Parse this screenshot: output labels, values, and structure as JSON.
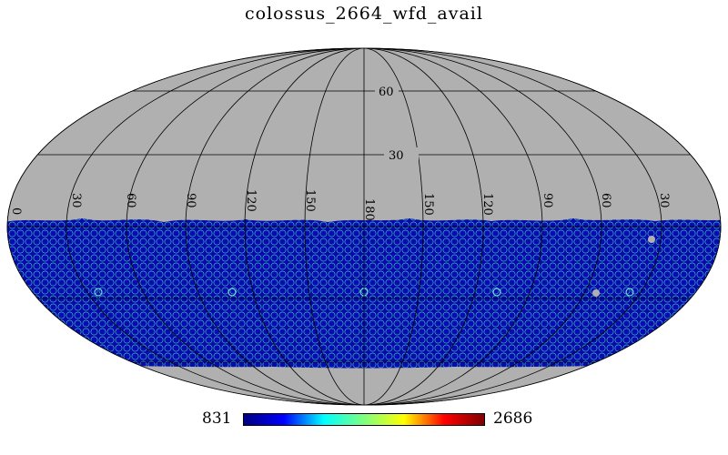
{
  "title": "colossus_2664_wfd_avail",
  "colorbar": {
    "min_label": "831",
    "max_label": "2686",
    "min": 831,
    "max": 2686,
    "colormap": [
      "#00007f",
      "#0000ff",
      "#00ffff",
      "#7fff7f",
      "#ffff00",
      "#ff0000",
      "#7f0000"
    ]
  },
  "map": {
    "projection": "mollweide",
    "background_color": "#b0b0b0",
    "footprint_color": "#0b0bb4",
    "dec_range_covered": [
      -70,
      12
    ],
    "overlap_highlight_color": "#7fffd4",
    "unobserved_gap_color": "#b0b0b0"
  },
  "graticule": {
    "lat_labels": [
      "60",
      "30"
    ],
    "lon_labels": [
      "0",
      "30",
      "60",
      "90",
      "120",
      "150",
      "180",
      "150",
      "120",
      "90",
      "60",
      "30"
    ]
  }
}
